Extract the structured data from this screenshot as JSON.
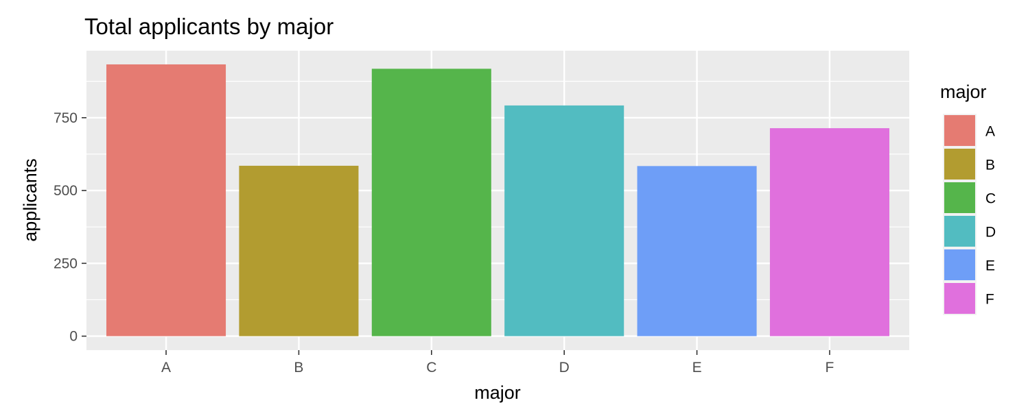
{
  "chart_data": {
    "type": "bar",
    "title": "Total applicants by major",
    "xlabel": "major",
    "ylabel": "applicants",
    "categories": [
      "A",
      "B",
      "C",
      "D",
      "E",
      "F"
    ],
    "values": [
      933,
      585,
      918,
      792,
      584,
      714
    ],
    "ylim": [
      -48,
      980
    ],
    "yticks": [
      0,
      250,
      500,
      750
    ],
    "ytick_labels": [
      "0",
      "250",
      "500",
      "750"
    ],
    "colors": [
      "#E57B72",
      "#B29C30",
      "#55B54B",
      "#52BCC1",
      "#6E9EF7",
      "#E070DD"
    ],
    "panel_background": "#EBEBEB",
    "grid_color": "#FFFFFF",
    "grid": true,
    "legend": {
      "title": "major",
      "position": "right",
      "entries": [
        "A",
        "B",
        "C",
        "D",
        "E",
        "F"
      ]
    }
  }
}
